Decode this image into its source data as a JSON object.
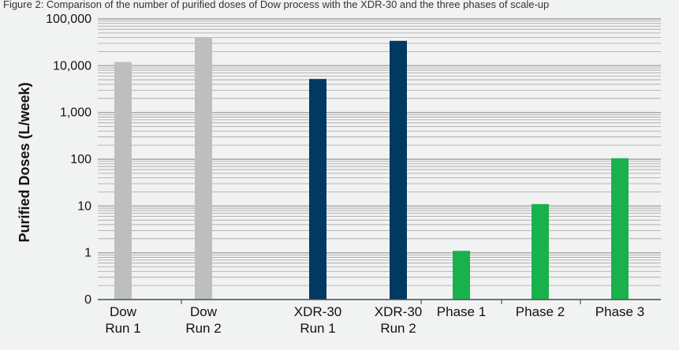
{
  "caption": "Figure 2: Comparison of the number of purified doses of Dow process with the XDR-30 and the three phases of scale-up",
  "chart_data": {
    "type": "bar",
    "ylabel": "Purified Doses (L/week)",
    "yscale": "log",
    "ylim": [
      0.1,
      100000
    ],
    "ytick_values": [
      0.1,
      1,
      10,
      100,
      1000,
      10000,
      100000
    ],
    "ytick_labels": [
      "0",
      "1",
      "10",
      "100",
      "1,000",
      "10,000",
      "100,000"
    ],
    "grid": true,
    "categories": [
      [
        "Dow",
        "Run 1"
      ],
      [
        "Dow",
        "Run 2"
      ],
      [
        "XDR-30",
        "Run 1"
      ],
      [
        "XDR-30",
        "Run 2"
      ],
      [
        "Phase 1"
      ],
      [
        "Phase 2"
      ],
      [
        "Phase 3"
      ]
    ],
    "values": [
      12000,
      40000,
      5200,
      34000,
      1.1,
      11,
      105
    ],
    "colors": [
      "#bcbec0",
      "#bcbec0",
      "#003a63",
      "#003a63",
      "#19b14b",
      "#19b14b",
      "#19b14b"
    ],
    "gridline_color": "#a7a2a4",
    "axis_color": "#555555"
  }
}
